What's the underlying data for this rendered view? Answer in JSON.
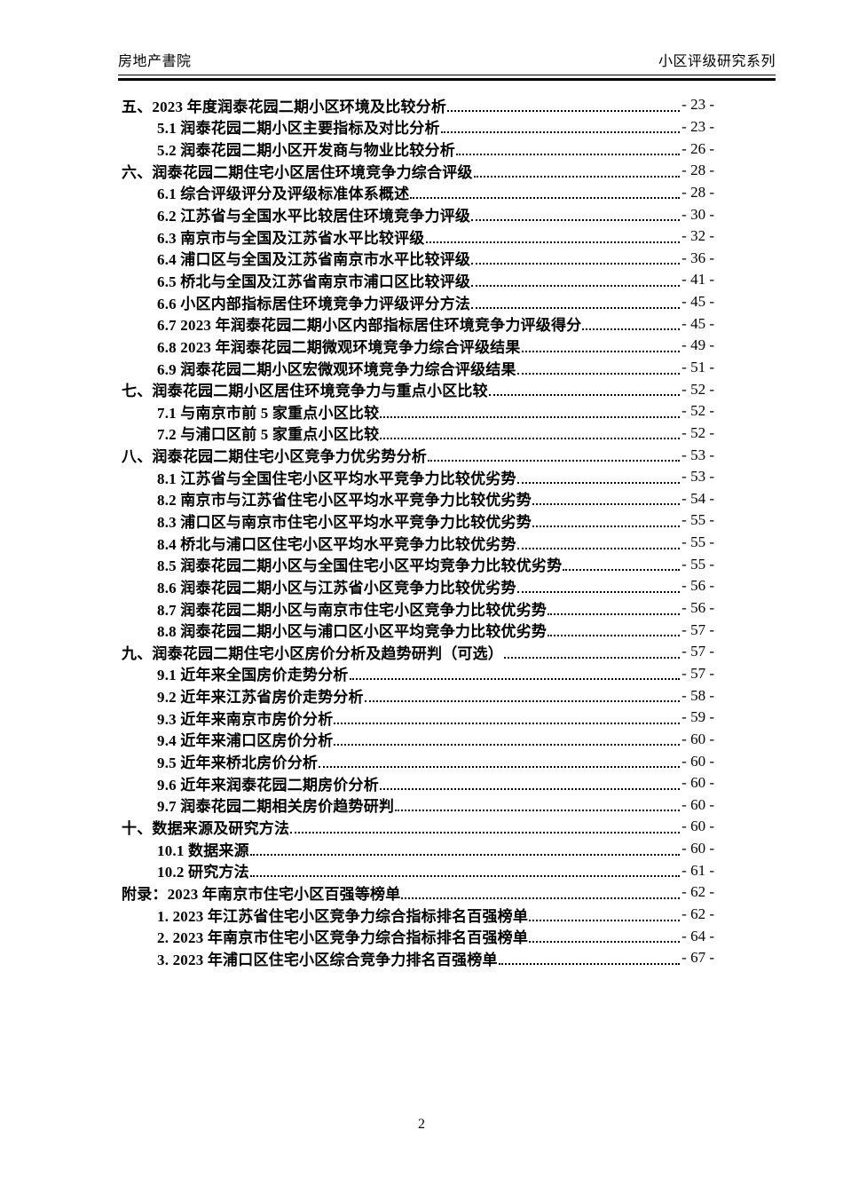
{
  "header": {
    "left_title": "房地产書院",
    "right_title": "小区评级研究系列"
  },
  "toc": {
    "entries": [
      {
        "level": 1,
        "title": "五、2023 年度润泰花园二期小区环境及比较分析",
        "page": "- 23 -"
      },
      {
        "level": 2,
        "title": "5.1 润泰花园二期小区主要指标及对比分析",
        "page": "- 23 -"
      },
      {
        "level": 2,
        "title": "5.2 润泰花园二期小区开发商与物业比较分析",
        "page": "- 26 -"
      },
      {
        "level": 1,
        "title": "六、润泰花园二期住宅小区居住环境竞争力综合评级",
        "page": "- 28 -"
      },
      {
        "level": 2,
        "title": "6.1 综合评级评分及评级标准体系概述",
        "page": "- 28 -"
      },
      {
        "level": 2,
        "title": "6.2 江苏省与全国水平比较居住环境竞争力评级",
        "page": "- 30 -"
      },
      {
        "level": 2,
        "title": "6.3 南京市与全国及江苏省水平比较评级",
        "page": "- 32 -"
      },
      {
        "level": 2,
        "title": "6.4 浦口区与全国及江苏省南京市水平比较评级",
        "page": "- 36 -"
      },
      {
        "level": 2,
        "title": "6.5 桥北与全国及江苏省南京市浦口区比较评级",
        "page": "- 41 -"
      },
      {
        "level": 2,
        "title": "6.6 小区内部指标居住环境竞争力评级评分方法",
        "page": "- 45 -"
      },
      {
        "level": 2,
        "title": "6.7 2023 年润泰花园二期小区内部指标居住环境竞争力评级得分",
        "page": "- 45 -"
      },
      {
        "level": 2,
        "title": "6.8 2023 年润泰花园二期微观环境竞争力综合评级结果",
        "page": "- 49 -"
      },
      {
        "level": 2,
        "title": "6.9 润泰花园二期小区宏微观环境竞争力综合评级结果",
        "page": "- 51 -"
      },
      {
        "level": 1,
        "title": "七、润泰花园二期小区居住环境竞争力与重点小区比较",
        "page": "- 52 -"
      },
      {
        "level": 2,
        "title": "7.1 与南京市前 5 家重点小区比较",
        "page": "- 52 -"
      },
      {
        "level": 2,
        "title": "7.2 与浦口区前 5 家重点小区比较",
        "page": "- 52 -"
      },
      {
        "level": 1,
        "title": "八、润泰花园二期住宅小区竞争力优劣势分析",
        "page": "- 53 -"
      },
      {
        "level": 2,
        "title": "8.1 江苏省与全国住宅小区平均水平竞争力比较优劣势",
        "page": "- 53 -"
      },
      {
        "level": 2,
        "title": "8.2 南京市与江苏省住宅小区平均水平竞争力比较优劣势",
        "page": "- 54 -"
      },
      {
        "level": 2,
        "title": "8.3 浦口区与南京市住宅小区平均水平竞争力比较优劣势",
        "page": "- 55 -"
      },
      {
        "level": 2,
        "title": "8.4 桥北与浦口区住宅小区平均水平竞争力比较优劣势",
        "page": "- 55 -"
      },
      {
        "level": 2,
        "title": "8.5 润泰花园二期小区与全国住宅小区平均竞争力比较优劣势",
        "page": "- 55 -"
      },
      {
        "level": 2,
        "title": "8.6 润泰花园二期小区与江苏省小区竞争力比较优劣势",
        "page": "- 56 -"
      },
      {
        "level": 2,
        "title": "8.7 润泰花园二期小区与南京市住宅小区竞争力比较优劣势",
        "page": "- 56 -"
      },
      {
        "level": 2,
        "title": "8.8 润泰花园二期小区与浦口区小区平均竞争力比较优劣势",
        "page": "- 57 -"
      },
      {
        "level": 1,
        "title": "九、润泰花园二期住宅小区房价分析及趋势研判（可选）",
        "page": "- 57 -"
      },
      {
        "level": 2,
        "title": "9.1 近年来全国房价走势分析",
        "page": "- 57 -"
      },
      {
        "level": 2,
        "title": "9.2 近年来江苏省房价走势分析",
        "page": "- 58 -"
      },
      {
        "level": 2,
        "title": "9.3 近年来南京市房价分析",
        "page": "- 59 -"
      },
      {
        "level": 2,
        "title": "9.4 近年来浦口区房价分析",
        "page": "- 60 -"
      },
      {
        "level": 2,
        "title": "9.5 近年来桥北房价分析",
        "page": "- 60 -"
      },
      {
        "level": 2,
        "title": "9.6 近年来润泰花园二期房价分析",
        "page": "- 60 -"
      },
      {
        "level": 2,
        "title": "9.7 润泰花园二期相关房价趋势研判",
        "page": "- 60 -"
      },
      {
        "level": 1,
        "title": "十、数据来源及研究方法",
        "page": "- 60 -"
      },
      {
        "level": 2,
        "title": "10.1 数据来源",
        "page": "- 60 -"
      },
      {
        "level": 2,
        "title": "10.2 研究方法",
        "page": "- 61 -"
      },
      {
        "level": 1,
        "title": "附录：2023 年南京市住宅小区百强等榜单",
        "page": "- 62 -"
      },
      {
        "level": 2,
        "title": "1. 2023 年江苏省住宅小区竞争力综合指标排名百强榜单",
        "page": "- 62 -"
      },
      {
        "level": 2,
        "title": "2. 2023 年南京市住宅小区竞争力综合指标排名百强榜单",
        "page": "- 64 -"
      },
      {
        "level": 2,
        "title": "3. 2023 年浦口区住宅小区综合竞争力排名百强榜单",
        "page": "- 67 -"
      }
    ]
  },
  "footer": {
    "page_number": "2"
  }
}
